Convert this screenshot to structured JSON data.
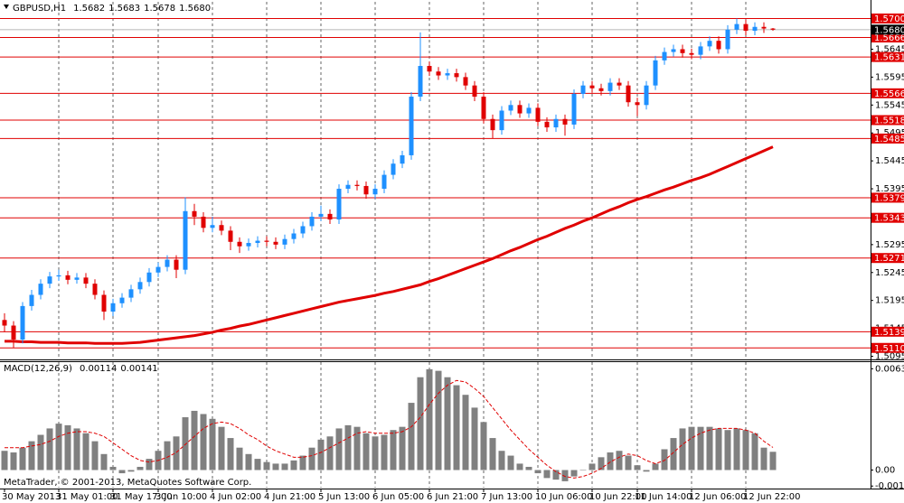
{
  "chart_data": {
    "type": "candlestick",
    "title": "GBPUSD,H1",
    "header_values": [
      1.5682,
      1.5683,
      1.5678,
      {
        "value": 1.568,
        "label": "1.5680"
      }
    ],
    "up_color": "#1e90ff",
    "down_color": "#e00000",
    "categories": [
      "30 May 2013",
      null,
      null,
      null,
      null,
      null,
      "31 May 01:00",
      null,
      null,
      null,
      null,
      null,
      "31 May 17:00",
      null,
      null,
      null,
      null,
      "3 Jun 10:00",
      null,
      null,
      null,
      null,
      null,
      "4 Jun 02:00",
      null,
      null,
      null,
      null,
      null,
      "4 Jun 21:00",
      null,
      null,
      null,
      null,
      null,
      "5 Jun 13:00",
      null,
      null,
      null,
      null,
      null,
      "6 Jun 05:00",
      null,
      null,
      null,
      null,
      null,
      "6 Jun 21:00",
      null,
      null,
      null,
      null,
      null,
      "7 Jun 13:00",
      null,
      null,
      null,
      null,
      null,
      "10 Jun 06:00",
      null,
      null,
      null,
      null,
      null,
      "10 Jun 22:00",
      null,
      null,
      null,
      null,
      "11 Jun 14:00",
      null,
      null,
      null,
      null,
      null,
      "12 Jun 06:00",
      null,
      null,
      null,
      null,
      null,
      "12 Jun 22:00",
      null,
      null,
      null
    ],
    "candles": [
      [
        1.516,
        1.5172,
        1.5138,
        1.515
      ],
      [
        1.515,
        1.5158,
        1.511,
        1.5125
      ],
      [
        1.5125,
        1.5192,
        1.5118,
        1.5185
      ],
      [
        1.5185,
        1.5214,
        1.5177,
        1.5205
      ],
      [
        1.5205,
        1.5233,
        1.5197,
        1.5225
      ],
      [
        1.5225,
        1.5246,
        1.5217,
        1.5238
      ],
      [
        1.5238,
        1.525,
        1.523,
        1.524
      ],
      [
        1.524,
        1.5248,
        1.5224,
        1.5232
      ],
      [
        1.5232,
        1.5244,
        1.5225,
        1.5236
      ],
      [
        1.5236,
        1.5244,
        1.5217,
        1.5225
      ],
      [
        1.5225,
        1.5233,
        1.5197,
        1.5205
      ],
      [
        1.5205,
        1.5213,
        1.516,
        1.5175
      ],
      [
        1.5175,
        1.5198,
        1.5167,
        1.519
      ],
      [
        1.519,
        1.5208,
        1.5182,
        1.52
      ],
      [
        1.52,
        1.5223,
        1.5192,
        1.5215
      ],
      [
        1.5215,
        1.5236,
        1.5207,
        1.5228
      ],
      [
        1.5228,
        1.5253,
        1.522,
        1.5245
      ],
      [
        1.5245,
        1.5263,
        1.5237,
        1.5255
      ],
      [
        1.5255,
        1.5276,
        1.5247,
        1.5268
      ],
      [
        1.5268,
        1.5276,
        1.5235,
        1.525
      ],
      [
        1.525,
        1.538,
        1.5242,
        1.5355
      ],
      [
        1.5355,
        1.5368,
        1.533,
        1.5345
      ],
      [
        1.5345,
        1.5353,
        1.5317,
        1.5325
      ],
      [
        1.5325,
        1.5345,
        1.5317,
        1.533
      ],
      [
        1.533,
        1.5338,
        1.5312,
        1.532
      ],
      [
        1.532,
        1.5328,
        1.5285,
        1.53
      ],
      [
        1.53,
        1.5308,
        1.528,
        1.5292
      ],
      [
        1.5292,
        1.5306,
        1.5284,
        1.5298
      ],
      [
        1.5298,
        1.531,
        1.529,
        1.5302
      ],
      [
        1.5302,
        1.531,
        1.5292,
        1.53
      ],
      [
        1.53,
        1.5308,
        1.5287,
        1.5295
      ],
      [
        1.5295,
        1.5313,
        1.5287,
        1.5305
      ],
      [
        1.5305,
        1.5323,
        1.5297,
        1.5315
      ],
      [
        1.5315,
        1.5336,
        1.5307,
        1.5328
      ],
      [
        1.5328,
        1.5353,
        1.532,
        1.5345
      ],
      [
        1.5345,
        1.5365,
        1.5337,
        1.535
      ],
      [
        1.535,
        1.5358,
        1.5332,
        1.534
      ],
      [
        1.534,
        1.5403,
        1.5332,
        1.5395
      ],
      [
        1.5395,
        1.541,
        1.5387,
        1.5402
      ],
      [
        1.5402,
        1.541,
        1.5392,
        1.54
      ],
      [
        1.54,
        1.5408,
        1.5377,
        1.5385
      ],
      [
        1.5385,
        1.5403,
        1.5377,
        1.5395
      ],
      [
        1.5395,
        1.5428,
        1.5387,
        1.542
      ],
      [
        1.542,
        1.5448,
        1.5412,
        1.544
      ],
      [
        1.544,
        1.5463,
        1.5432,
        1.5455
      ],
      [
        1.5455,
        1.5568,
        1.5447,
        1.556
      ],
      [
        1.556,
        1.5675,
        1.5552,
        1.5615
      ],
      [
        1.5615,
        1.5623,
        1.5597,
        1.5605
      ],
      [
        1.5605,
        1.5613,
        1.559,
        1.5598
      ],
      [
        1.5598,
        1.561,
        1.559,
        1.5602
      ],
      [
        1.5602,
        1.561,
        1.5587,
        1.5595
      ],
      [
        1.5595,
        1.5603,
        1.5572,
        1.558
      ],
      [
        1.558,
        1.5588,
        1.5552,
        1.556
      ],
      [
        1.556,
        1.5568,
        1.5512,
        1.552
      ],
      [
        1.552,
        1.5528,
        1.5485,
        1.55
      ],
      [
        1.55,
        1.5543,
        1.5492,
        1.5535
      ],
      [
        1.5535,
        1.5553,
        1.5527,
        1.5545
      ],
      [
        1.5545,
        1.5553,
        1.5522,
        1.553
      ],
      [
        1.553,
        1.5548,
        1.5522,
        1.554
      ],
      [
        1.554,
        1.5548,
        1.5507,
        1.5515
      ],
      [
        1.5515,
        1.5523,
        1.5497,
        1.5505
      ],
      [
        1.5505,
        1.5528,
        1.5497,
        1.552
      ],
      [
        1.552,
        1.5528,
        1.549,
        1.551
      ],
      [
        1.551,
        1.5573,
        1.5502,
        1.5565
      ],
      [
        1.5565,
        1.5588,
        1.5557,
        1.558
      ],
      [
        1.558,
        1.5588,
        1.5567,
        1.5575
      ],
      [
        1.5575,
        1.5583,
        1.5562,
        1.557
      ],
      [
        1.557,
        1.5593,
        1.5562,
        1.5585
      ],
      [
        1.5585,
        1.5593,
        1.5572,
        1.558
      ],
      [
        1.558,
        1.5588,
        1.5542,
        1.555
      ],
      [
        1.555,
        1.5558,
        1.5525,
        1.5545
      ],
      [
        1.5545,
        1.5588,
        1.5537,
        1.558
      ],
      [
        1.558,
        1.5633,
        1.5572,
        1.5625
      ],
      [
        1.5625,
        1.5648,
        1.5617,
        1.564
      ],
      [
        1.564,
        1.5653,
        1.5632,
        1.5645
      ],
      [
        1.5645,
        1.5653,
        1.563,
        1.5638
      ],
      [
        1.5638,
        1.5646,
        1.5627,
        1.5635
      ],
      [
        1.5635,
        1.5658,
        1.5627,
        1.565
      ],
      [
        1.565,
        1.5668,
        1.5642,
        1.566
      ],
      [
        1.566,
        1.5668,
        1.5637,
        1.5645
      ],
      [
        1.5645,
        1.5688,
        1.5637,
        1.568
      ],
      [
        1.568,
        1.57,
        1.5672,
        1.569
      ],
      [
        1.569,
        1.5698,
        1.567,
        1.5678
      ],
      [
        1.5678,
        1.5693,
        1.567,
        1.5685
      ],
      [
        1.5685,
        1.5693,
        1.5674,
        1.5682
      ],
      [
        1.5682,
        1.5683,
        1.5678,
        1.568
      ]
    ],
    "ma": {
      "color": "#e00000",
      "values": [
        1.5122,
        1.5122,
        1.5121,
        1.5121,
        1.512,
        1.512,
        1.512,
        1.5119,
        1.5119,
        1.5119,
        1.5118,
        1.5118,
        1.5118,
        1.5118,
        1.5119,
        1.512,
        1.5122,
        1.5124,
        1.5126,
        1.5128,
        1.513,
        1.5132,
        1.5135,
        1.5138,
        1.5142,
        1.5145,
        1.5149,
        1.5152,
        1.5156,
        1.516,
        1.5164,
        1.5168,
        1.5172,
        1.5176,
        1.518,
        1.5184,
        1.5188,
        1.5192,
        1.5195,
        1.5198,
        1.5201,
        1.5204,
        1.5208,
        1.5211,
        1.5215,
        1.5219,
        1.5223,
        1.5229,
        1.5234,
        1.524,
        1.5246,
        1.5252,
        1.5258,
        1.5264,
        1.527,
        1.5277,
        1.5284,
        1.529,
        1.5297,
        1.5304,
        1.531,
        1.5317,
        1.5324,
        1.533,
        1.5337,
        1.5343,
        1.535,
        1.5357,
        1.5363,
        1.537,
        1.5376,
        1.5381,
        1.5387,
        1.5393,
        1.5398,
        1.5404,
        1.541,
        1.5415,
        1.5421,
        1.5428,
        1.5435,
        1.5442,
        1.5449,
        1.5456,
        1.5463,
        1.547
      ]
    },
    "ylim": [
      1.5091,
      1.5704
    ],
    "yticks": [
      1.5645,
      1.5595,
      1.5545,
      1.5495,
      1.5445,
      1.5395,
      1.5345,
      1.5295,
      1.5245,
      1.5195,
      1.5145,
      1.5095
    ],
    "current_price": {
      "value": 1.568,
      "label": "1.5680"
    },
    "level_color": "#e00000",
    "levels": [
      {
        "value": 1.57,
        "label": "1.5700"
      },
      1.5666,
      1.5631,
      1.5566,
      1.5518,
      1.5485,
      1.5379,
      1.5343,
      1.5271,
      1.5139,
      {
        "value": 1.511,
        "label": "1.5110"
      }
    ],
    "indicator": {
      "title": "MACD(12,26,9)",
      "header_values": [
        0.00114,
        0.00141
      ],
      "histogram_color": "#808080",
      "signal_color": "#e00000",
      "histogram": [
        0.0012,
        0.0011,
        0.0014,
        0.0018,
        0.0022,
        0.0026,
        0.0029,
        0.0028,
        0.0026,
        0.0023,
        0.0018,
        0.001,
        0.0002,
        -0.0002,
        -0.0001,
        0.0002,
        0.0007,
        0.0012,
        0.0018,
        0.0021,
        0.0033,
        0.0037,
        0.0035,
        0.0032,
        0.0027,
        0.002,
        0.0014,
        0.001,
        0.0007,
        0.0005,
        0.0004,
        0.0004,
        0.0006,
        0.0009,
        0.0014,
        0.0019,
        0.0021,
        0.0026,
        0.0028,
        0.0027,
        0.0023,
        0.0021,
        0.0022,
        0.0025,
        0.0027,
        0.0042,
        0.0058,
        0.0063,
        0.0062,
        0.0058,
        0.0053,
        0.0047,
        0.0039,
        0.003,
        0.002,
        0.0012,
        0.0009,
        0.0004,
        0.0002,
        -0.0002,
        -0.0005,
        -0.0006,
        -0.0007,
        -0.0004,
        0.0,
        0.0004,
        0.0008,
        0.0011,
        0.0012,
        0.0009,
        0.0003,
        -0.0001,
        0.0004,
        0.0013,
        0.002,
        0.0026,
        0.0027,
        0.0027,
        0.0027,
        0.0026,
        0.0025,
        0.0026,
        0.0025,
        0.0023,
        0.0014,
        0.00114
      ],
      "signal": [
        0.0014,
        0.0014,
        0.0014,
        0.0015,
        0.0016,
        0.0018,
        0.0021,
        0.0023,
        0.0024,
        0.0024,
        0.0023,
        0.0021,
        0.0017,
        0.0013,
        0.0009,
        0.0006,
        0.0005,
        0.0006,
        0.0008,
        0.0011,
        0.0016,
        0.0021,
        0.0026,
        0.0029,
        0.003,
        0.0029,
        0.0026,
        0.0022,
        0.0019,
        0.0015,
        0.0012,
        0.001,
        0.0008,
        0.0008,
        0.0009,
        0.0011,
        0.0014,
        0.0017,
        0.002,
        0.0023,
        0.0024,
        0.0023,
        0.0023,
        0.0023,
        0.0024,
        0.0027,
        0.0033,
        0.0041,
        0.0048,
        0.0053,
        0.0056,
        0.0055,
        0.0051,
        0.0046,
        0.0039,
        0.0032,
        0.0025,
        0.0019,
        0.0013,
        0.0008,
        0.0003,
        -0.0001,
        -0.0004,
        -0.0005,
        -0.0004,
        -0.0002,
        0.0001,
        0.0005,
        0.0008,
        0.001,
        0.0009,
        0.0006,
        0.0004,
        0.0006,
        0.0011,
        0.0016,
        0.002,
        0.0023,
        0.0025,
        0.0026,
        0.0026,
        0.0026,
        0.0025,
        0.0023,
        0.0018,
        0.00141
      ],
      "ylim": [
        -0.0011,
        0.0068
      ],
      "yticks": [
        0.00633,
        {
          "value": 0,
          "label": "0.00"
        },
        -0.001
      ]
    },
    "footer": "MetaTrader, © 2001-2013, MetaQuotes Software Corp."
  }
}
